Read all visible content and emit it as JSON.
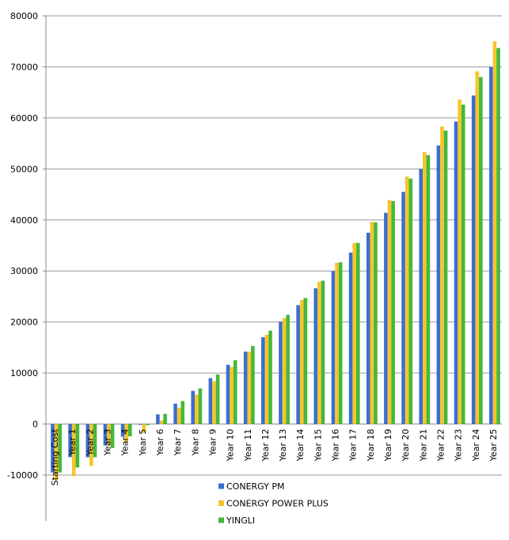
{
  "chart_data": {
    "type": "bar",
    "categories": [
      "Starting Cost",
      "Year 1",
      "Year 2",
      "Year 3",
      "Year 4",
      "Year 5",
      "Year 6",
      "Year 7",
      "Year 8",
      "Year 9",
      "Year 10",
      "Year 11",
      "Year 12",
      "Year 13",
      "Year 14",
      "Year 15",
      "Year 16",
      "Year 17",
      "Year 18",
      "Year 19",
      "Year 20",
      "Year 21",
      "Year 22",
      "Year 23",
      "Year 24",
      "Year 25"
    ],
    "series": [
      {
        "name": "CONERGY PM",
        "color": "#3A6FD0",
        "values": [
          -9500,
          -6500,
          -6500,
          -4200,
          -2500,
          -150,
          1900,
          4000,
          6500,
          9000,
          11600,
          14200,
          17000,
          20100,
          23300,
          26600,
          30000,
          33600,
          37500,
          41400,
          45500,
          50000,
          54600,
          59300,
          64400,
          70000
        ]
      },
      {
        "name": "CONERGY POWER PLUS",
        "color": "#F7C52A",
        "values": [
          -11000,
          -10200,
          -8200,
          -4200,
          -3500,
          -1700,
          700,
          3200,
          5800,
          8400,
          11200,
          14200,
          17500,
          20800,
          24300,
          27900,
          31600,
          35500,
          39600,
          43900,
          48500,
          53300,
          58300,
          63600,
          69100,
          75000
        ]
      },
      {
        "name": "YINGLI",
        "color": "#44B83A",
        "values": [
          -9500,
          -8500,
          -6500,
          -4700,
          -2400,
          -200,
          2000,
          4500,
          7000,
          9700,
          12500,
          15300,
          18300,
          21400,
          24700,
          28100,
          31700,
          35500,
          39500,
          43700,
          48100,
          52700,
          57500,
          62600,
          68000,
          73700
        ]
      }
    ],
    "title": "",
    "xlabel": "",
    "ylabel": "",
    "ylim": [
      -10000,
      80000
    ],
    "yticks": [
      -10000,
      0,
      10000,
      20000,
      30000,
      40000,
      50000,
      60000,
      70000,
      80000
    ],
    "grid": true,
    "legend_position": "bottom"
  }
}
